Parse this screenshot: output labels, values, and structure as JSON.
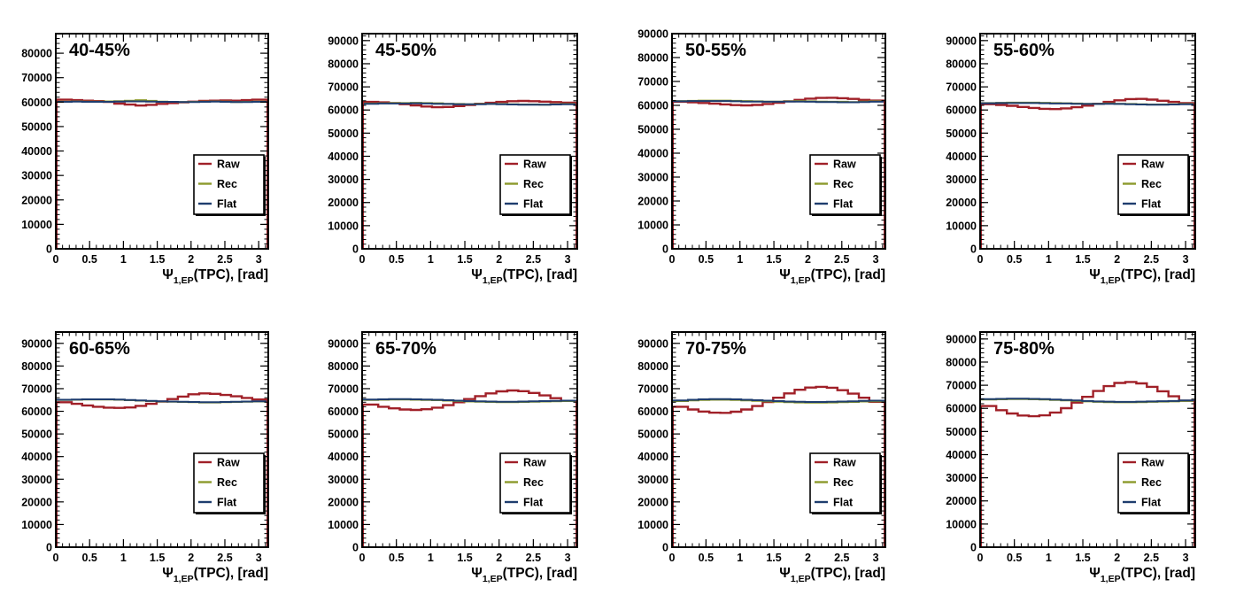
{
  "chart_data": [
    {
      "type": "line",
      "title": "40-45%",
      "xlabel_symbol": "Ψ",
      "xlabel_sub": "1,EP",
      "xlabel_rest": "(TPC), [rad]",
      "xlim": [
        0,
        3.1416
      ],
      "ylim": [
        0,
        88000
      ],
      "xticks": [
        "0",
        "0.5",
        "1",
        "1.5",
        "2",
        "2.5",
        "3"
      ],
      "yticks": [
        "0",
        "10000",
        "20000",
        "30000",
        "40000",
        "50000",
        "60000",
        "70000",
        "80000"
      ],
      "x": [
        0.0,
        0.16,
        0.31,
        0.47,
        0.63,
        0.79,
        0.94,
        1.1,
        1.26,
        1.41,
        1.57,
        1.73,
        1.88,
        2.04,
        2.2,
        2.36,
        2.51,
        2.67,
        2.83,
        2.98,
        3.14
      ],
      "series": [
        {
          "name": "Raw",
          "color": "#a02028",
          "values": [
            61000,
            61000,
            60800,
            60600,
            60400,
            60100,
            59400,
            59000,
            58600,
            58900,
            59300,
            59600,
            59900,
            60200,
            60500,
            60600,
            60700,
            60600,
            60800,
            61000,
            61000
          ]
        },
        {
          "name": "Rec",
          "color": "#8c9a2c",
          "values": [
            60200,
            60200,
            60300,
            60200,
            60200,
            60300,
            60400,
            60600,
            60800,
            60500,
            60200,
            60100,
            60000,
            60100,
            60200,
            60300,
            60200,
            60000,
            60100,
            60200,
            60200
          ]
        },
        {
          "name": "Flat",
          "color": "#1e3d6e",
          "values": [
            60100,
            60100,
            60200,
            60100,
            60100,
            60100,
            60200,
            60300,
            60300,
            60200,
            60100,
            60100,
            60000,
            60000,
            60100,
            60200,
            60100,
            60000,
            60000,
            60100,
            60100
          ]
        }
      ]
    },
    {
      "type": "line",
      "title": "45-50%",
      "xlabel_symbol": "Ψ",
      "xlabel_sub": "1,EP",
      "xlabel_rest": "(TPC), [rad]",
      "xlim": [
        0,
        3.1416
      ],
      "ylim": [
        0,
        93000
      ],
      "xticks": [
        "0",
        "0.5",
        "1",
        "1.5",
        "2",
        "2.5",
        "3"
      ],
      "yticks": [
        "0",
        "10000",
        "20000",
        "30000",
        "40000",
        "50000",
        "60000",
        "70000",
        "80000",
        "90000"
      ],
      "x": [
        0.0,
        0.16,
        0.31,
        0.47,
        0.63,
        0.79,
        0.94,
        1.1,
        1.26,
        1.41,
        1.57,
        1.73,
        1.88,
        2.04,
        2.2,
        2.36,
        2.51,
        2.67,
        2.83,
        2.98,
        3.14
      ],
      "series": [
        {
          "name": "Raw",
          "color": "#a02028",
          "values": [
            63500,
            63500,
            63300,
            63000,
            62500,
            62000,
            61500,
            61200,
            61300,
            61700,
            62200,
            62700,
            63100,
            63500,
            63800,
            63900,
            63800,
            63600,
            63400,
            63200,
            63200
          ]
        },
        {
          "name": "Rec",
          "color": "#8c9a2c",
          "values": [
            62800,
            62800,
            62900,
            63000,
            63000,
            63100,
            63000,
            62900,
            62700,
            62600,
            62500,
            62600,
            62700,
            62600,
            62500,
            62400,
            62400,
            62300,
            62500,
            62600,
            62600
          ]
        },
        {
          "name": "Flat",
          "color": "#1e3d6e",
          "values": [
            62700,
            62700,
            62800,
            62800,
            62800,
            62900,
            62800,
            62700,
            62600,
            62500,
            62500,
            62500,
            62600,
            62500,
            62400,
            62300,
            62300,
            62300,
            62400,
            62500,
            62500
          ]
        }
      ]
    },
    {
      "type": "line",
      "title": "50-55%",
      "xlabel_symbol": "Ψ",
      "xlabel_sub": "1,EP",
      "xlabel_rest": "(TPC), [rad]",
      "xlim": [
        0,
        3.1416
      ],
      "ylim": [
        0,
        90000
      ],
      "xticks": [
        "0",
        "0.5",
        "1",
        "1.5",
        "2",
        "2.5",
        "3"
      ],
      "yticks": [
        "0",
        "10000",
        "20000",
        "30000",
        "40000",
        "50000",
        "60000",
        "70000",
        "80000",
        "90000"
      ],
      "x": [
        0.0,
        0.16,
        0.31,
        0.47,
        0.63,
        0.79,
        0.94,
        1.1,
        1.26,
        1.41,
        1.57,
        1.73,
        1.88,
        2.04,
        2.2,
        2.36,
        2.51,
        2.67,
        2.83,
        2.98,
        3.14
      ],
      "series": [
        {
          "name": "Raw",
          "color": "#a02028",
          "values": [
            61500,
            61500,
            61300,
            61000,
            60700,
            60400,
            60100,
            60000,
            60200,
            60600,
            61100,
            61700,
            62300,
            62800,
            63100,
            63200,
            63000,
            62700,
            62300,
            62000,
            62000
          ]
        },
        {
          "name": "Rec",
          "color": "#8c9a2c",
          "values": [
            61800,
            61800,
            61900,
            62000,
            62000,
            62000,
            61900,
            61800,
            61700,
            61600,
            61600,
            61700,
            61800,
            61700,
            61600,
            61500,
            61500,
            61400,
            61600,
            61700,
            61700
          ]
        },
        {
          "name": "Flat",
          "color": "#1e3d6e",
          "values": [
            61700,
            61700,
            61800,
            61800,
            61800,
            61800,
            61700,
            61600,
            61600,
            61500,
            61500,
            61600,
            61600,
            61500,
            61400,
            61400,
            61300,
            61300,
            61400,
            61500,
            61500
          ]
        }
      ]
    },
    {
      "type": "line",
      "title": "55-60%",
      "xlabel_symbol": "Ψ",
      "xlabel_sub": "1,EP",
      "xlabel_rest": "(TPC), [rad]",
      "xlim": [
        0,
        3.1416
      ],
      "ylim": [
        0,
        93000
      ],
      "xticks": [
        "0",
        "0.5",
        "1",
        "1.5",
        "2",
        "2.5",
        "3"
      ],
      "yticks": [
        "0",
        "10000",
        "20000",
        "30000",
        "40000",
        "50000",
        "60000",
        "70000",
        "80000",
        "90000"
      ],
      "x": [
        0.0,
        0.16,
        0.31,
        0.47,
        0.63,
        0.79,
        0.94,
        1.1,
        1.26,
        1.41,
        1.57,
        1.73,
        1.88,
        2.04,
        2.2,
        2.36,
        2.51,
        2.67,
        2.83,
        2.98,
        3.14
      ],
      "series": [
        {
          "name": "Raw",
          "color": "#a02028",
          "values": [
            62500,
            62500,
            62200,
            61800,
            61300,
            60900,
            60500,
            60400,
            60700,
            61200,
            61900,
            62700,
            63500,
            64200,
            64700,
            64800,
            64500,
            64000,
            63500,
            63000,
            63000
          ]
        },
        {
          "name": "Rec",
          "color": "#8c9a2c",
          "values": [
            63000,
            63000,
            63100,
            63200,
            63200,
            63200,
            63100,
            63000,
            62900,
            62800,
            62700,
            62700,
            62800,
            62700,
            62600,
            62500,
            62400,
            62400,
            62500,
            62600,
            62600
          ]
        },
        {
          "name": "Flat",
          "color": "#1e3d6e",
          "values": [
            62900,
            62900,
            63000,
            63000,
            63000,
            63000,
            62900,
            62800,
            62800,
            62700,
            62600,
            62600,
            62700,
            62600,
            62500,
            62400,
            62300,
            62300,
            62400,
            62500,
            62500
          ]
        }
      ]
    },
    {
      "type": "line",
      "title": "60-65%",
      "xlabel_symbol": "Ψ",
      "xlabel_sub": "1,EP",
      "xlabel_rest": "(TPC), [rad]",
      "xlim": [
        0,
        3.1416
      ],
      "ylim": [
        0,
        95000
      ],
      "xticks": [
        "0",
        "0.5",
        "1",
        "1.5",
        "2",
        "2.5",
        "3"
      ],
      "yticks": [
        "0",
        "10000",
        "20000",
        "30000",
        "40000",
        "50000",
        "60000",
        "70000",
        "80000",
        "90000"
      ],
      "x": [
        0.0,
        0.16,
        0.31,
        0.47,
        0.63,
        0.79,
        0.94,
        1.1,
        1.26,
        1.41,
        1.57,
        1.73,
        1.88,
        2.04,
        2.2,
        2.36,
        2.51,
        2.67,
        2.83,
        2.98,
        3.14
      ],
      "series": [
        {
          "name": "Raw",
          "color": "#a02028",
          "values": [
            64000,
            64000,
            63300,
            62600,
            62000,
            61600,
            61500,
            61700,
            62400,
            63300,
            64300,
            65400,
            66500,
            67500,
            67900,
            67700,
            67200,
            66600,
            65900,
            65200,
            65200
          ]
        },
        {
          "name": "Rec",
          "color": "#8c9a2c",
          "values": [
            65000,
            65000,
            65100,
            65200,
            65200,
            65200,
            65100,
            64900,
            64700,
            64500,
            64300,
            64200,
            64100,
            64000,
            63900,
            63900,
            64000,
            64100,
            64200,
            64300,
            64300
          ]
        },
        {
          "name": "Flat",
          "color": "#1e3d6e",
          "values": [
            65100,
            65100,
            65200,
            65300,
            65300,
            65300,
            65200,
            65000,
            64800,
            64600,
            64400,
            64300,
            64200,
            64100,
            64000,
            64000,
            64100,
            64200,
            64300,
            64400,
            64400
          ]
        }
      ]
    },
    {
      "type": "line",
      "title": "65-70%",
      "xlabel_symbol": "Ψ",
      "xlabel_sub": "1,EP",
      "xlabel_rest": "(TPC), [rad]",
      "xlim": [
        0,
        3.1416
      ],
      "ylim": [
        0,
        95000
      ],
      "xticks": [
        "0",
        "0.5",
        "1",
        "1.5",
        "2",
        "2.5",
        "3"
      ],
      "yticks": [
        "0",
        "10000",
        "20000",
        "30000",
        "40000",
        "50000",
        "60000",
        "70000",
        "80000",
        "90000"
      ],
      "x": [
        0.0,
        0.16,
        0.31,
        0.47,
        0.63,
        0.79,
        0.94,
        1.1,
        1.26,
        1.41,
        1.57,
        1.73,
        1.88,
        2.04,
        2.2,
        2.36,
        2.51,
        2.67,
        2.83,
        2.98,
        3.14
      ],
      "series": [
        {
          "name": "Raw",
          "color": "#a02028",
          "values": [
            63000,
            63000,
            62000,
            61300,
            60800,
            60600,
            60900,
            61600,
            62700,
            64000,
            65400,
            66700,
            67900,
            68800,
            69200,
            68900,
            68100,
            67000,
            65800,
            64600,
            64600
          ]
        },
        {
          "name": "Rec",
          "color": "#8c9a2c",
          "values": [
            65000,
            65000,
            65100,
            65200,
            65200,
            65100,
            65000,
            64900,
            64700,
            64500,
            64300,
            64200,
            64100,
            64000,
            64000,
            64100,
            64200,
            64300,
            64400,
            64500,
            64500
          ]
        },
        {
          "name": "Flat",
          "color": "#1e3d6e",
          "values": [
            65200,
            65200,
            65300,
            65400,
            65400,
            65300,
            65200,
            65100,
            64900,
            64700,
            64500,
            64400,
            64300,
            64200,
            64200,
            64300,
            64400,
            64500,
            64600,
            64700,
            64700
          ]
        }
      ]
    },
    {
      "type": "line",
      "title": "70-75%",
      "xlabel_symbol": "Ψ",
      "xlabel_sub": "1,EP",
      "xlabel_rest": "(TPC), [rad]",
      "xlim": [
        0,
        3.1416
      ],
      "ylim": [
        0,
        95000
      ],
      "xticks": [
        "0",
        "0.5",
        "1",
        "1.5",
        "2",
        "2.5",
        "3"
      ],
      "yticks": [
        "0",
        "10000",
        "20000",
        "30000",
        "40000",
        "50000",
        "60000",
        "70000",
        "80000",
        "90000"
      ],
      "x": [
        0.0,
        0.16,
        0.31,
        0.47,
        0.63,
        0.79,
        0.94,
        1.1,
        1.26,
        1.41,
        1.57,
        1.73,
        1.88,
        2.04,
        2.2,
        2.36,
        2.51,
        2.67,
        2.83,
        2.98,
        3.14
      ],
      "series": [
        {
          "name": "Raw",
          "color": "#a02028",
          "values": [
            62000,
            62000,
            60800,
            59900,
            59400,
            59300,
            59800,
            60800,
            62300,
            64100,
            66000,
            67900,
            69500,
            70500,
            70800,
            70400,
            69300,
            67800,
            66000,
            64200,
            64200
          ]
        },
        {
          "name": "Rec",
          "color": "#8c9a2c",
          "values": [
            64500,
            64500,
            64800,
            65000,
            65100,
            65100,
            65000,
            64800,
            64600,
            64400,
            64200,
            64000,
            63900,
            63800,
            63800,
            63900,
            64000,
            64100,
            64300,
            64400,
            64400
          ]
        },
        {
          "name": "Flat",
          "color": "#1e3d6e",
          "values": [
            64800,
            64800,
            65100,
            65300,
            65400,
            65400,
            65300,
            65100,
            64900,
            64700,
            64500,
            64300,
            64200,
            64100,
            64100,
            64200,
            64300,
            64400,
            64600,
            64700,
            64700
          ]
        }
      ]
    },
    {
      "type": "line",
      "title": "75-80%",
      "xlabel_symbol": "Ψ",
      "xlabel_sub": "1,EP",
      "xlabel_rest": "(TPC), [rad]",
      "xlim": [
        0,
        3.1416
      ],
      "ylim": [
        0,
        93000
      ],
      "xticks": [
        "0",
        "0.5",
        "1",
        "1.5",
        "2",
        "2.5",
        "3"
      ],
      "yticks": [
        "0",
        "10000",
        "20000",
        "30000",
        "40000",
        "50000",
        "60000",
        "70000",
        "80000",
        "90000"
      ],
      "x": [
        0.0,
        0.16,
        0.31,
        0.47,
        0.63,
        0.79,
        0.94,
        1.1,
        1.26,
        1.41,
        1.57,
        1.73,
        1.88,
        2.04,
        2.2,
        2.36,
        2.51,
        2.67,
        2.83,
        2.98,
        3.14
      ],
      "series": [
        {
          "name": "Raw",
          "color": "#a02028",
          "values": [
            61000,
            61000,
            59200,
            57800,
            56900,
            56600,
            57000,
            58200,
            60100,
            62500,
            65000,
            67500,
            69600,
            71000,
            71400,
            70800,
            69300,
            67400,
            65200,
            63300,
            63300
          ]
        },
        {
          "name": "Rec",
          "color": "#8c9a2c",
          "values": [
            63800,
            63800,
            63900,
            64000,
            64000,
            63900,
            63800,
            63600,
            63400,
            63200,
            63000,
            62800,
            62700,
            62600,
            62600,
            62700,
            62800,
            62900,
            63000,
            63200,
            63200
          ]
        },
        {
          "name": "Flat",
          "color": "#1e3d6e",
          "values": [
            64000,
            64000,
            64100,
            64200,
            64200,
            64100,
            64000,
            63800,
            63600,
            63400,
            63200,
            63000,
            62900,
            62800,
            62800,
            62900,
            63000,
            63100,
            63200,
            63400,
            63400
          ]
        }
      ]
    }
  ]
}
